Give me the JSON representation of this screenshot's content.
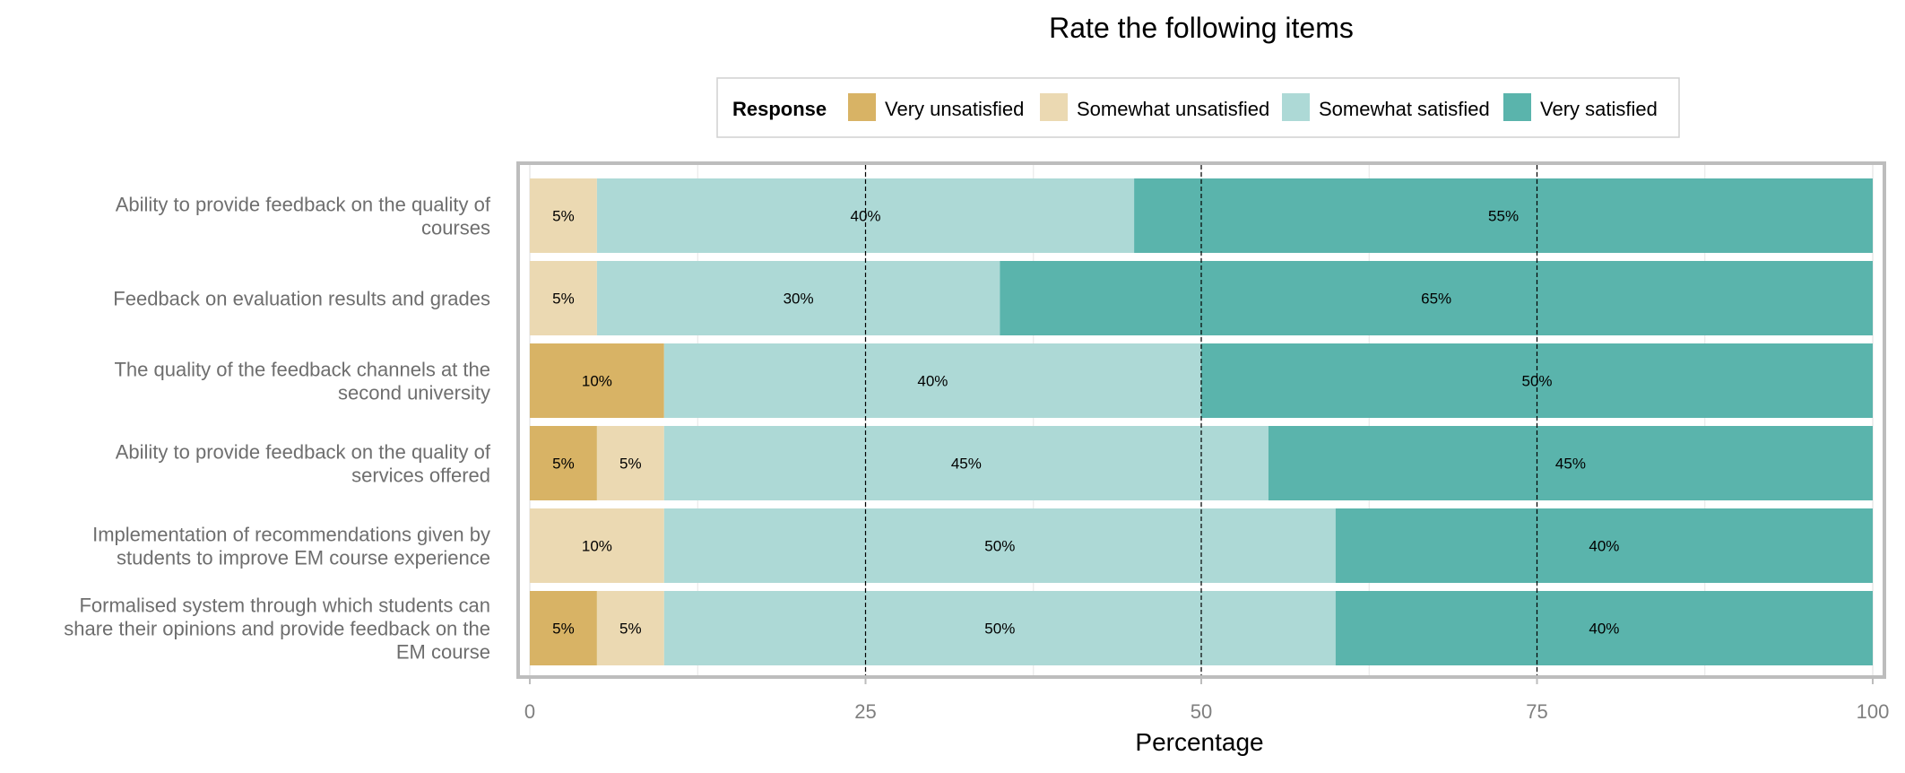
{
  "chart_data": {
    "type": "bar",
    "orientation": "horizontal",
    "stacked": true,
    "title": "Rate the following items",
    "xlabel": "Percentage",
    "ylabel": "",
    "xlim": [
      0,
      100
    ],
    "xticks": [
      0,
      25,
      50,
      75,
      100
    ],
    "grid": true,
    "legend": {
      "title": "Response",
      "placement": "top"
    },
    "categories": [
      [
        "Ability to provide feedback on the quality of",
        "courses"
      ],
      [
        "Feedback on evaluation results and grades"
      ],
      [
        "The quality of the feedback channels at the",
        "second university"
      ],
      [
        "Ability to provide feedback on the quality of",
        "services offered"
      ],
      [
        "Implementation of recommendations given by",
        "students to improve EM course experience"
      ],
      [
        "Formalised system through which students can",
        "share their opinions and provide feedback on the",
        "EM course"
      ]
    ],
    "series": [
      {
        "name": "Very unsatisfied",
        "color": "#d8b365",
        "values": [
          0,
          0,
          10,
          5,
          0,
          5
        ]
      },
      {
        "name": "Somewhat unsatisfied",
        "color": "#ebd9b2",
        "values": [
          5,
          5,
          0,
          5,
          10,
          5
        ]
      },
      {
        "name": "Somewhat satisfied",
        "color": "#add9d6",
        "values": [
          40,
          30,
          40,
          45,
          50,
          50
        ]
      },
      {
        "name": "Very satisfied",
        "color": "#5ab4ac",
        "values": [
          55,
          65,
          50,
          45,
          40,
          40
        ]
      }
    ],
    "reference_lines": [
      25,
      50,
      75
    ]
  }
}
